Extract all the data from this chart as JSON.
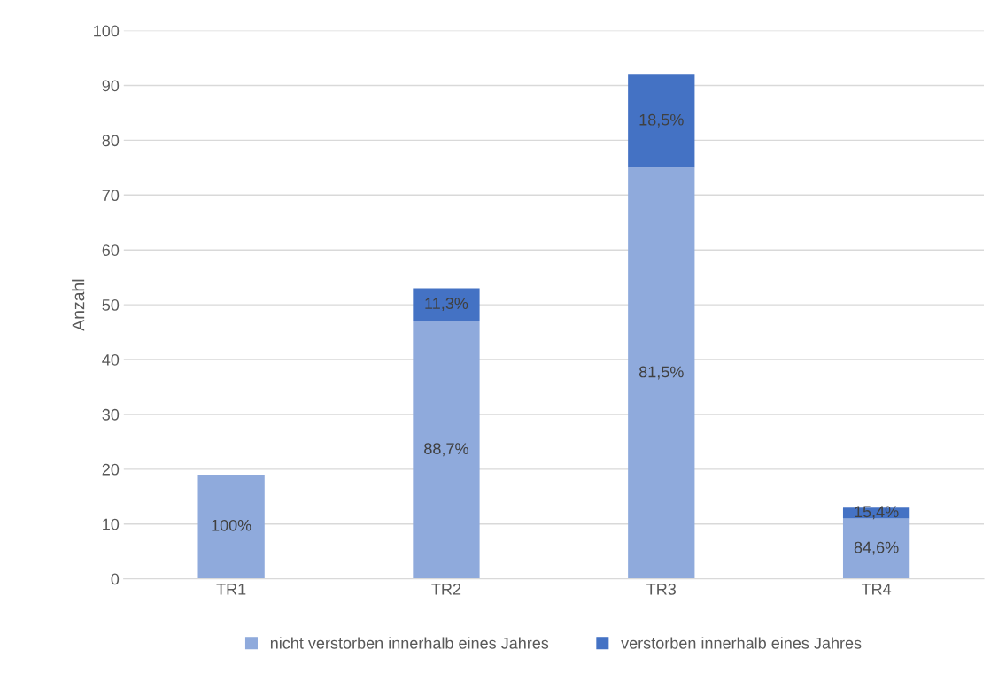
{
  "chart_data": {
    "type": "bar",
    "stacked": true,
    "ylabel": "Anzahl",
    "categories": [
      "TR1",
      "TR2",
      "TR3",
      "TR4"
    ],
    "series": [
      {
        "name": "nicht verstorben innerhalb eines Jahres",
        "color": "#8faadc",
        "values": [
          19,
          47,
          75,
          11
        ]
      },
      {
        "name": "verstorben innerhalb eines Jahres",
        "color": "#4472c4",
        "values": [
          0,
          6,
          17,
          2
        ]
      }
    ],
    "annotations": [
      "100%",
      "88,7%",
      "81,5%",
      "84,6%",
      "11,3%",
      "18,5%",
      "15,4%"
    ],
    "ylim": [
      0,
      100
    ],
    "yticks": [
      0,
      10,
      20,
      30,
      40,
      50,
      60,
      70,
      80,
      90,
      100
    ],
    "grid": "y",
    "legend": "bottom"
  }
}
